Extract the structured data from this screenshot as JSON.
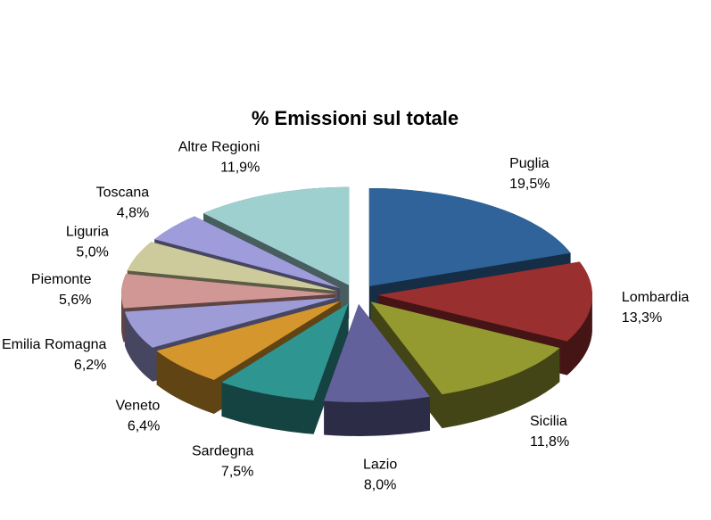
{
  "chart_data": {
    "type": "pie",
    "title": "% Emissioni sul totale",
    "categories": [
      "Puglia",
      "Lombardia",
      "Sicilia",
      "Lazio",
      "Sardegna",
      "Veneto",
      "Emilia Romagna",
      "Piemonte",
      "Liguria",
      "Toscana",
      "Altre Regioni"
    ],
    "values": [
      19.5,
      13.3,
      11.8,
      8.0,
      7.5,
      6.4,
      6.2,
      5.6,
      5.0,
      4.8,
      11.9
    ],
    "value_labels": [
      "19,5%",
      "13,3%",
      "11,8%",
      "8,0%",
      "7,5%",
      "6,4%",
      "6,2%",
      "5,6%",
      "5,0%",
      "4,8%",
      "11,9%"
    ],
    "colors": [
      "#2f6399",
      "#9a2f30",
      "#959a30",
      "#63619b",
      "#2f9591",
      "#d5962d",
      "#9d9cd6",
      "#d19795",
      "#cdcb9b",
      "#9e9cda",
      "#9fd0d0"
    ]
  }
}
